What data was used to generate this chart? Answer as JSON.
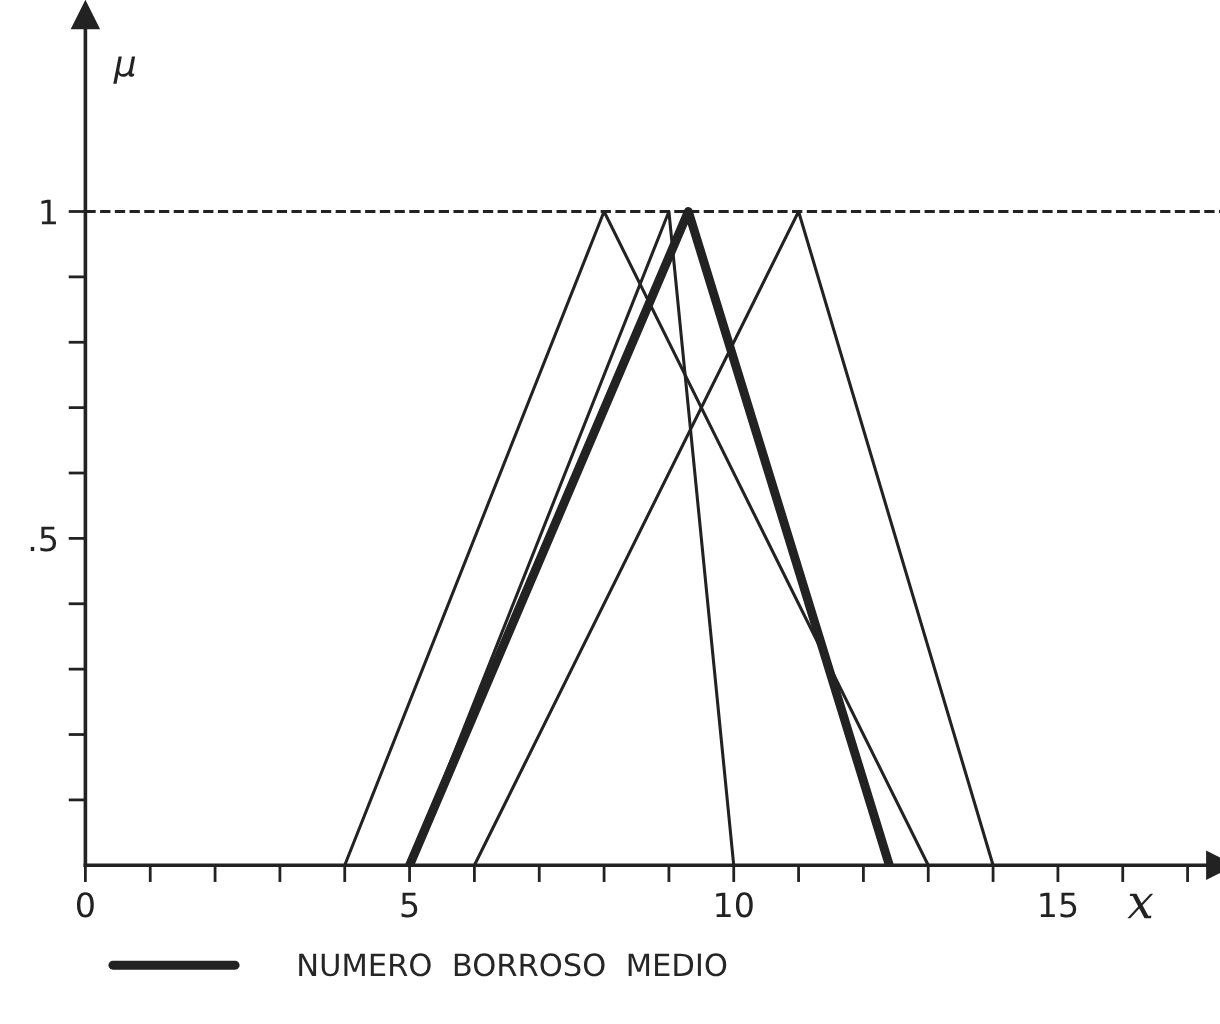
{
  "chart_data": {
    "type": "line",
    "xlabel": "x",
    "ylabel": "μ",
    "series": [
      {
        "color": "#222222",
        "x": [
          4,
          8,
          13
        ],
        "values": [
          0,
          1,
          0
        ]
      },
      {
        "color": "#222222",
        "x": [
          5,
          9,
          10
        ],
        "values": [
          0,
          1,
          0
        ]
      },
      {
        "color": "#222222",
        "x": [
          6,
          11,
          14
        ],
        "values": [
          0,
          1,
          0
        ]
      },
      {
        "name": "NUMERO  BORROSO  MEDIO",
        "color": "#222222",
        "x": [
          5,
          9.3,
          12.4
        ],
        "values": [
          0,
          1,
          0
        ]
      }
    ],
    "xlim": [
      0,
      17.5
    ],
    "ylim": [
      0,
      1.3
    ],
    "xticks": [
      0,
      {
        "value": 1,
        "label": null
      },
      {
        "value": 2,
        "label": null
      },
      {
        "value": 3,
        "label": null
      },
      {
        "value": 4,
        "label": null
      },
      5,
      {
        "value": 6,
        "label": null
      },
      {
        "value": 7,
        "label": null
      },
      {
        "value": 8,
        "label": null
      },
      {
        "value": 9,
        "label": null
      },
      10,
      {
        "value": 11,
        "label": null
      },
      {
        "value": 12,
        "label": null
      },
      {
        "value": 13,
        "label": null
      },
      {
        "value": 14,
        "label": null
      },
      15,
      {
        "value": 16,
        "label": null
      },
      {
        "value": 17,
        "label": null
      }
    ],
    "yticks": [
      {
        "value": 0.1,
        "label": null
      },
      {
        "value": 0.2,
        "label": null
      },
      {
        "value": 0.3,
        "label": null
      },
      {
        "value": 0.4,
        "label": null
      },
      {
        "value": 0.5,
        "label": ".5"
      },
      {
        "value": 0.6,
        "label": null
      },
      {
        "value": 0.7,
        "label": null
      },
      {
        "value": 0.8,
        "label": null
      },
      {
        "value": 0.9,
        "label": null
      },
      {
        "value": 1,
        "label": "1"
      }
    ],
    "ref_lines": [
      {
        "axis": "y",
        "value": 1,
        "line_style": "dashed",
        "color": "#222222"
      }
    ],
    "grid": false,
    "legend": "bottom",
    "marker": "none",
    "line_style": "solid"
  }
}
